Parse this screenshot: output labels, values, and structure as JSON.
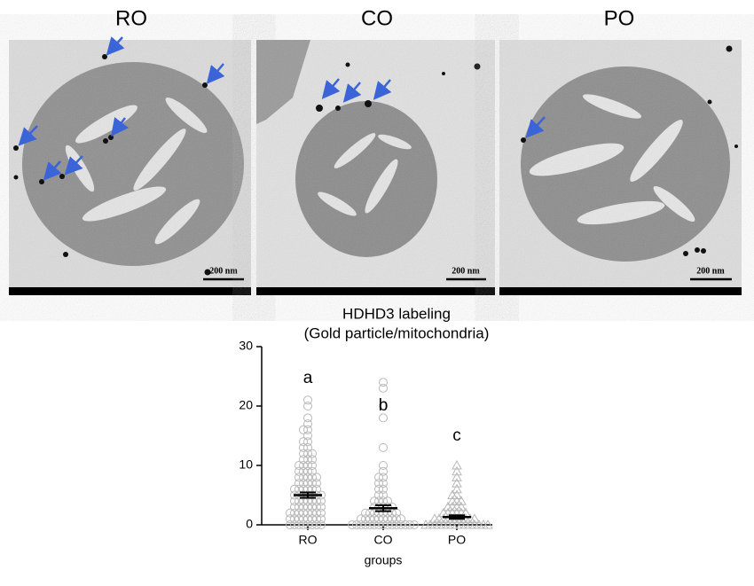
{
  "panels": [
    {
      "label": "RO",
      "scale_bar": "200 nm"
    },
    {
      "label": "CO",
      "scale_bar": "200 nm"
    },
    {
      "label": "PO",
      "scale_bar": "200 nm"
    }
  ],
  "chart_data": {
    "type": "dot",
    "title": "HDHD3 labeling",
    "subtitle": "(Gold particle/mitochondria)",
    "x_label": "groups",
    "categories": [
      "RO",
      "CO",
      "PO"
    ],
    "markers": [
      "circle",
      "circle",
      "triangle"
    ],
    "color": "#b8b8b8",
    "points": [
      [
        0,
        0,
        0,
        0,
        0,
        0,
        0,
        0,
        1,
        1,
        1,
        1,
        1,
        1,
        1,
        1,
        2,
        2,
        2,
        2,
        2,
        2,
        2,
        2,
        3,
        3,
        3,
        3,
        3,
        3,
        3,
        4,
        4,
        4,
        4,
        4,
        4,
        4,
        5,
        5,
        5,
        5,
        5,
        5,
        5,
        6,
        6,
        6,
        6,
        6,
        6,
        7,
        7,
        7,
        7,
        7,
        8,
        8,
        8,
        8,
        8,
        9,
        9,
        9,
        9,
        10,
        10,
        10,
        10,
        11,
        11,
        11,
        12,
        12,
        12,
        13,
        13,
        14,
        14,
        15,
        16,
        16,
        17,
        18,
        20,
        21
      ],
      [
        0,
        0,
        0,
        0,
        0,
        0,
        0,
        0,
        0,
        0,
        0,
        0,
        0,
        0,
        0,
        1,
        1,
        1,
        1,
        1,
        1,
        1,
        1,
        1,
        1,
        2,
        2,
        2,
        2,
        2,
        2,
        2,
        2,
        3,
        3,
        3,
        3,
        3,
        4,
        4,
        4,
        4,
        5,
        5,
        6,
        6,
        7,
        7,
        8,
        8,
        9,
        10,
        13,
        18,
        20,
        23,
        24
      ],
      [
        0,
        0,
        0,
        0,
        0,
        0,
        0,
        0,
        0,
        0,
        0,
        0,
        0,
        0,
        0,
        1,
        1,
        1,
        1,
        1,
        1,
        1,
        1,
        1,
        1,
        2,
        2,
        2,
        2,
        2,
        2,
        3,
        3,
        3,
        3,
        4,
        4,
        4,
        5,
        5,
        6,
        7,
        8,
        9,
        10
      ]
    ],
    "means": [
      5,
      2.8,
      1.3
    ],
    "errors": [
      0.45,
      0.5,
      0.3
    ],
    "annotations": [
      "a",
      "b",
      "c"
    ],
    "ylim": [
      0,
      30
    ],
    "yticks": [
      0,
      10,
      20,
      30
    ]
  }
}
